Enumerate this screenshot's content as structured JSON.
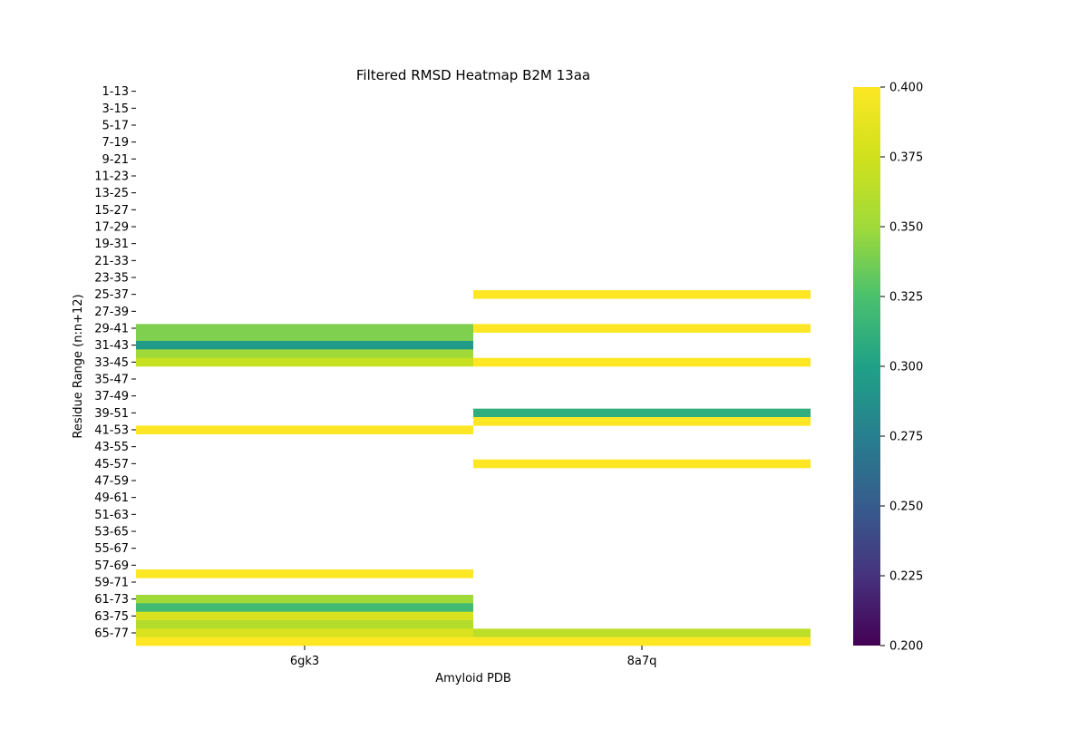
{
  "chart_data": {
    "type": "heatmap",
    "title": "Filtered RMSD Heatmap B2M 13aa",
    "xlabel": "Amyloid PDB",
    "ylabel": "Residue Range (n:n+12)",
    "columns": [
      "6gk3",
      "8a7q"
    ],
    "rows": [
      "1-13",
      "2-14",
      "3-15",
      "4-16",
      "5-17",
      "6-18",
      "7-19",
      "8-20",
      "9-21",
      "10-22",
      "11-23",
      "12-24",
      "13-25",
      "14-26",
      "15-27",
      "16-28",
      "17-29",
      "18-30",
      "19-31",
      "20-32",
      "21-33",
      "22-34",
      "23-35",
      "24-36",
      "25-37",
      "26-38",
      "27-39",
      "28-40",
      "29-41",
      "30-42",
      "31-43",
      "32-44",
      "33-45",
      "34-46",
      "35-47",
      "36-48",
      "37-49",
      "38-50",
      "39-51",
      "40-52",
      "41-53",
      "42-54",
      "43-55",
      "44-56",
      "45-57",
      "46-58",
      "47-59",
      "48-60",
      "49-61",
      "50-62",
      "51-63",
      "52-64",
      "53-65",
      "54-66",
      "55-67",
      "56-68",
      "57-69",
      "58-70",
      "59-71",
      "60-72",
      "61-73",
      "62-74",
      "63-75",
      "64-76",
      "65-77",
      "66-78"
    ],
    "ytick_labels": [
      "1-13",
      "3-15",
      "5-17",
      "7-19",
      "9-21",
      "11-23",
      "13-25",
      "15-27",
      "17-29",
      "19-31",
      "21-33",
      "23-35",
      "25-37",
      "27-39",
      "29-41",
      "31-43",
      "33-45",
      "35-47",
      "37-49",
      "39-51",
      "41-53",
      "43-55",
      "45-57",
      "47-59",
      "49-61",
      "51-63",
      "53-65",
      "55-67",
      "57-69",
      "59-71",
      "61-73",
      "63-75",
      "65-77"
    ],
    "cells": [
      {
        "row": "29-41",
        "col": "6gk3",
        "value": 0.34
      },
      {
        "row": "30-42",
        "col": "6gk3",
        "value": 0.34
      },
      {
        "row": "31-43",
        "col": "6gk3",
        "value": 0.295
      },
      {
        "row": "32-44",
        "col": "6gk3",
        "value": 0.35
      },
      {
        "row": "33-45",
        "col": "6gk3",
        "value": 0.37
      },
      {
        "row": "41-53",
        "col": "6gk3",
        "value": 0.4
      },
      {
        "row": "58-70",
        "col": "6gk3",
        "value": 0.4
      },
      {
        "row": "61-73",
        "col": "6gk3",
        "value": 0.35
      },
      {
        "row": "62-74",
        "col": "6gk3",
        "value": 0.32
      },
      {
        "row": "63-75",
        "col": "6gk3",
        "value": 0.38
      },
      {
        "row": "64-76",
        "col": "6gk3",
        "value": 0.36
      },
      {
        "row": "65-77",
        "col": "6gk3",
        "value": 0.38
      },
      {
        "row": "66-78",
        "col": "6gk3",
        "value": 0.4
      },
      {
        "row": "25-37",
        "col": "8a7q",
        "value": 0.4
      },
      {
        "row": "29-41",
        "col": "8a7q",
        "value": 0.4
      },
      {
        "row": "33-45",
        "col": "8a7q",
        "value": 0.4
      },
      {
        "row": "39-51",
        "col": "8a7q",
        "value": 0.31
      },
      {
        "row": "40-52",
        "col": "8a7q",
        "value": 0.4
      },
      {
        "row": "45-57",
        "col": "8a7q",
        "value": 0.4
      },
      {
        "row": "65-77",
        "col": "8a7q",
        "value": 0.365
      },
      {
        "row": "66-78",
        "col": "8a7q",
        "value": 0.4
      }
    ],
    "colorbar": {
      "vmin": 0.2,
      "vmax": 0.4,
      "ticks": [
        "0.200",
        "0.225",
        "0.250",
        "0.275",
        "0.300",
        "0.325",
        "0.350",
        "0.375",
        "0.400"
      ],
      "colormap": "viridis"
    },
    "grid": false
  }
}
